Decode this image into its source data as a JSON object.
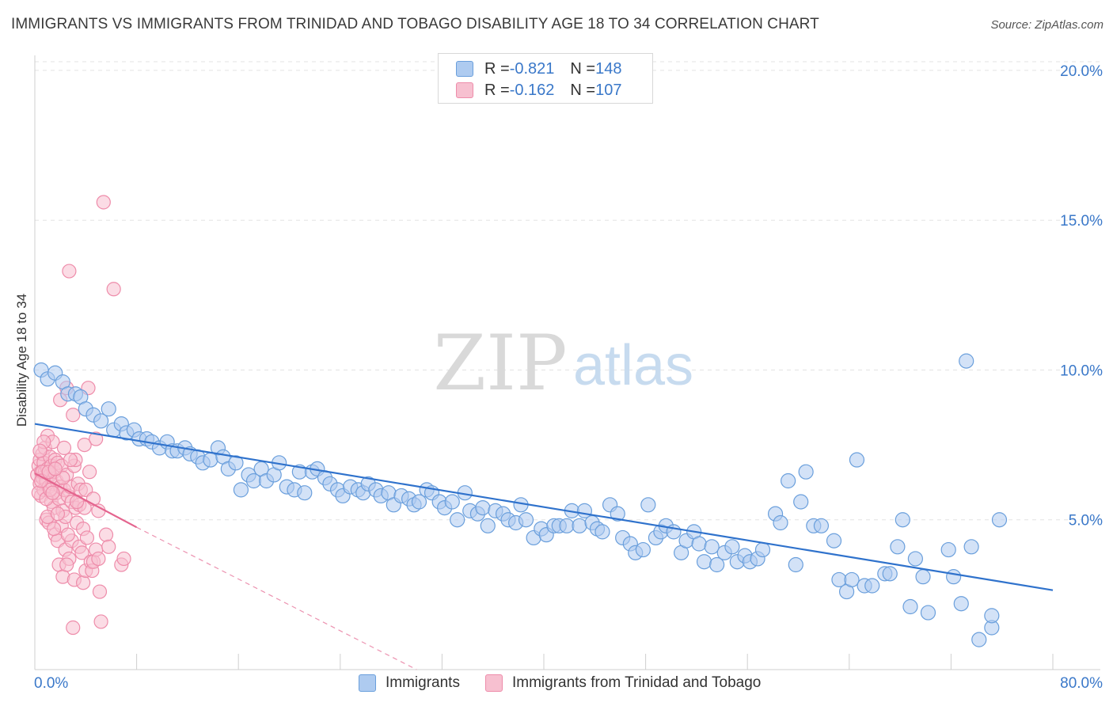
{
  "title": "IMMIGRANTS VS IMMIGRANTS FROM TRINIDAD AND TOBAGO DISABILITY AGE 18 TO 34 CORRELATION CHART",
  "source": "Source: ZipAtlas.com",
  "watermark": {
    "zip": "ZIP",
    "atlas": "atlas"
  },
  "legend_top": [
    {
      "r_label": "R = ",
      "r_value": "-0.821",
      "n_label": "N = ",
      "n_value": "148"
    },
    {
      "r_label": "R = ",
      "r_value": "-0.162",
      "n_label": "N = ",
      "n_value": "107"
    }
  ],
  "colors": {
    "blue_fill": "#aecbf0",
    "blue_stroke": "#6a9fdc",
    "blue_line": "#2f72cc",
    "pink_fill": "#f7c0d0",
    "pink_stroke": "#ee8caa",
    "pink_line": "#e4648e",
    "axis_text": "#3a78c9"
  },
  "chart_data": {
    "type": "scatter",
    "title": "IMMIGRANTS VS IMMIGRANTS FROM TRINIDAD AND TOBAGO DISABILITY AGE 18 TO 34 CORRELATION CHART",
    "xlabel": "",
    "ylabel": "Disability Age 18 to 34",
    "xlim": [
      0,
      80
    ],
    "ylim": [
      0,
      20.5
    ],
    "x_tick_labels": [
      "0.0%",
      "80.0%"
    ],
    "y_ticks": [
      5,
      10,
      15,
      20
    ],
    "y_tick_labels": [
      "5.0%",
      "10.0%",
      "15.0%",
      "20.0%"
    ],
    "grid": true,
    "legend_position": "bottom",
    "series": [
      {
        "name": "Immigrants",
        "r": -0.821,
        "n": 148,
        "trend": {
          "x": [
            0,
            80
          ],
          "y": [
            8.2,
            2.65
          ],
          "style": "solid"
        },
        "points": [
          [
            0.5,
            10.0
          ],
          [
            1.0,
            9.7
          ],
          [
            1.6,
            9.9
          ],
          [
            2.2,
            9.6
          ],
          [
            2.6,
            9.2
          ],
          [
            3.2,
            9.2
          ],
          [
            3.6,
            9.1
          ],
          [
            4.0,
            8.7
          ],
          [
            4.6,
            8.5
          ],
          [
            5.2,
            8.3
          ],
          [
            5.8,
            8.7
          ],
          [
            6.2,
            8.0
          ],
          [
            6.8,
            8.2
          ],
          [
            7.2,
            7.9
          ],
          [
            7.8,
            8.0
          ],
          [
            8.2,
            7.7
          ],
          [
            8.8,
            7.7
          ],
          [
            9.2,
            7.6
          ],
          [
            9.8,
            7.4
          ],
          [
            10.4,
            7.6
          ],
          [
            10.8,
            7.3
          ],
          [
            11.2,
            7.3
          ],
          [
            11.8,
            7.4
          ],
          [
            12.2,
            7.2
          ],
          [
            12.8,
            7.1
          ],
          [
            13.2,
            6.9
          ],
          [
            13.8,
            7.0
          ],
          [
            14.4,
            7.4
          ],
          [
            14.8,
            7.1
          ],
          [
            15.2,
            6.7
          ],
          [
            15.8,
            6.9
          ],
          [
            16.2,
            6.0
          ],
          [
            16.8,
            6.5
          ],
          [
            17.2,
            6.3
          ],
          [
            17.8,
            6.7
          ],
          [
            18.2,
            6.3
          ],
          [
            18.8,
            6.5
          ],
          [
            19.2,
            6.9
          ],
          [
            19.8,
            6.1
          ],
          [
            20.4,
            6.0
          ],
          [
            20.8,
            6.6
          ],
          [
            21.2,
            5.9
          ],
          [
            21.8,
            6.6
          ],
          [
            22.2,
            6.7
          ],
          [
            22.8,
            6.4
          ],
          [
            23.2,
            6.2
          ],
          [
            23.8,
            6.0
          ],
          [
            24.2,
            5.8
          ],
          [
            24.8,
            6.1
          ],
          [
            25.4,
            6.0
          ],
          [
            25.8,
            5.9
          ],
          [
            26.2,
            6.2
          ],
          [
            26.8,
            6.0
          ],
          [
            27.2,
            5.8
          ],
          [
            27.8,
            5.9
          ],
          [
            28.2,
            5.5
          ],
          [
            28.8,
            5.8
          ],
          [
            29.4,
            5.7
          ],
          [
            29.8,
            5.5
          ],
          [
            30.2,
            5.6
          ],
          [
            30.8,
            6.0
          ],
          [
            31.2,
            5.9
          ],
          [
            31.8,
            5.6
          ],
          [
            32.2,
            5.4
          ],
          [
            32.8,
            5.6
          ],
          [
            33.2,
            5.0
          ],
          [
            33.8,
            5.9
          ],
          [
            34.2,
            5.3
          ],
          [
            34.8,
            5.2
          ],
          [
            35.2,
            5.4
          ],
          [
            35.6,
            4.8
          ],
          [
            36.2,
            5.3
          ],
          [
            36.8,
            5.2
          ],
          [
            37.2,
            5.0
          ],
          [
            37.8,
            4.9
          ],
          [
            38.2,
            5.5
          ],
          [
            38.6,
            5.0
          ],
          [
            39.2,
            4.4
          ],
          [
            39.8,
            4.7
          ],
          [
            40.2,
            4.5
          ],
          [
            40.8,
            4.8
          ],
          [
            41.2,
            4.8
          ],
          [
            41.8,
            4.8
          ],
          [
            42.2,
            5.3
          ],
          [
            42.8,
            4.8
          ],
          [
            43.2,
            5.3
          ],
          [
            43.8,
            4.9
          ],
          [
            44.2,
            4.7
          ],
          [
            44.6,
            4.6
          ],
          [
            45.2,
            5.5
          ],
          [
            45.8,
            5.2
          ],
          [
            46.2,
            4.4
          ],
          [
            46.8,
            4.2
          ],
          [
            47.2,
            3.9
          ],
          [
            47.8,
            4.0
          ],
          [
            48.2,
            5.5
          ],
          [
            48.8,
            4.4
          ],
          [
            49.2,
            4.6
          ],
          [
            49.6,
            4.8
          ],
          [
            50.2,
            4.6
          ],
          [
            50.8,
            3.9
          ],
          [
            51.2,
            4.3
          ],
          [
            51.8,
            4.6
          ],
          [
            52.2,
            4.2
          ],
          [
            52.6,
            3.6
          ],
          [
            53.2,
            4.1
          ],
          [
            53.6,
            3.5
          ],
          [
            54.2,
            3.9
          ],
          [
            54.8,
            4.1
          ],
          [
            55.2,
            3.6
          ],
          [
            55.8,
            3.8
          ],
          [
            56.2,
            3.6
          ],
          [
            56.8,
            3.7
          ],
          [
            57.2,
            4.0
          ],
          [
            58.2,
            5.2
          ],
          [
            58.6,
            4.9
          ],
          [
            59.2,
            6.3
          ],
          [
            59.8,
            3.5
          ],
          [
            60.2,
            5.6
          ],
          [
            60.6,
            6.6
          ],
          [
            61.2,
            4.8
          ],
          [
            61.8,
            4.8
          ],
          [
            62.8,
            4.3
          ],
          [
            63.2,
            3.0
          ],
          [
            63.8,
            2.6
          ],
          [
            64.2,
            3.0
          ],
          [
            64.6,
            7.0
          ],
          [
            65.2,
            2.8
          ],
          [
            65.8,
            2.8
          ],
          [
            66.8,
            3.2
          ],
          [
            67.2,
            3.2
          ],
          [
            67.8,
            4.1
          ],
          [
            68.2,
            5.0
          ],
          [
            68.8,
            2.1
          ],
          [
            69.2,
            3.7
          ],
          [
            69.8,
            3.1
          ],
          [
            70.2,
            1.9
          ],
          [
            71.8,
            4.0
          ],
          [
            72.2,
            3.1
          ],
          [
            72.8,
            2.2
          ],
          [
            73.2,
            10.3
          ],
          [
            73.6,
            4.1
          ],
          [
            74.2,
            1.0
          ],
          [
            75.2,
            1.4
          ],
          [
            75.8,
            5.0
          ],
          [
            75.2,
            1.8
          ]
        ]
      },
      {
        "name": "Immigrants from Trinidad and Tobago",
        "r": -0.162,
        "n": 107,
        "trend_solid": {
          "x": [
            0,
            8
          ],
          "y": [
            6.55,
            4.75
          ]
        },
        "trend_dashed": {
          "x": [
            8,
            30
          ],
          "y": [
            4.75,
            0
          ]
        },
        "points": [
          [
            0.2,
            6.5
          ],
          [
            0.3,
            6.8
          ],
          [
            0.4,
            6.2
          ],
          [
            0.4,
            7.0
          ],
          [
            0.5,
            6.6
          ],
          [
            0.5,
            5.8
          ],
          [
            0.6,
            7.2
          ],
          [
            0.6,
            6.4
          ],
          [
            0.7,
            6.9
          ],
          [
            0.7,
            6.0
          ],
          [
            0.8,
            6.6
          ],
          [
            0.8,
            7.4
          ],
          [
            0.9,
            6.3
          ],
          [
            0.9,
            5.0
          ],
          [
            1.0,
            6.7
          ],
          [
            1.0,
            7.8
          ],
          [
            1.1,
            6.1
          ],
          [
            1.1,
            4.9
          ],
          [
            1.2,
            6.5
          ],
          [
            1.2,
            7.1
          ],
          [
            1.3,
            5.6
          ],
          [
            1.3,
            6.8
          ],
          [
            1.4,
            6.2
          ],
          [
            1.4,
            7.6
          ],
          [
            1.5,
            5.4
          ],
          [
            1.5,
            6.6
          ],
          [
            1.6,
            4.5
          ],
          [
            1.6,
            7.0
          ],
          [
            1.7,
            5.9
          ],
          [
            1.7,
            6.3
          ],
          [
            1.8,
            4.3
          ],
          [
            1.8,
            6.9
          ],
          [
            1.9,
            5.7
          ],
          [
            1.9,
            3.5
          ],
          [
            2.0,
            9.0
          ],
          [
            2.0,
            6.1
          ],
          [
            2.1,
            4.8
          ],
          [
            2.1,
            6.8
          ],
          [
            2.2,
            5.3
          ],
          [
            2.2,
            3.1
          ],
          [
            2.3,
            7.4
          ],
          [
            2.3,
            6.0
          ],
          [
            2.4,
            5.1
          ],
          [
            2.4,
            4.0
          ],
          [
            2.5,
            6.5
          ],
          [
            2.5,
            9.4
          ],
          [
            2.6,
            5.8
          ],
          [
            2.7,
            13.3
          ],
          [
            2.7,
            3.7
          ],
          [
            2.8,
            6.1
          ],
          [
            2.9,
            4.3
          ],
          [
            2.9,
            5.6
          ],
          [
            3.0,
            8.5
          ],
          [
            3.0,
            1.4
          ],
          [
            3.1,
            6.8
          ],
          [
            3.1,
            3.0
          ],
          [
            3.2,
            7.0
          ],
          [
            3.2,
            5.4
          ],
          [
            3.3,
            4.9
          ],
          [
            3.4,
            6.2
          ],
          [
            3.5,
            5.5
          ],
          [
            3.5,
            4.1
          ],
          [
            3.6,
            6.0
          ],
          [
            3.7,
            3.9
          ],
          [
            3.8,
            4.7
          ],
          [
            3.8,
            2.9
          ],
          [
            3.9,
            5.4
          ],
          [
            3.9,
            7.5
          ],
          [
            4.0,
            6.0
          ],
          [
            4.0,
            3.3
          ],
          [
            4.1,
            4.4
          ],
          [
            4.2,
            9.4
          ],
          [
            4.3,
            6.6
          ],
          [
            4.4,
            3.6
          ],
          [
            4.5,
            3.3
          ],
          [
            4.6,
            3.6
          ],
          [
            4.6,
            5.7
          ],
          [
            4.8,
            4.0
          ],
          [
            4.8,
            7.7
          ],
          [
            5.0,
            3.7
          ],
          [
            5.0,
            5.3
          ],
          [
            5.1,
            2.6
          ],
          [
            5.2,
            1.6
          ],
          [
            5.4,
            15.6
          ],
          [
            5.6,
            4.5
          ],
          [
            5.8,
            4.1
          ],
          [
            6.2,
            12.7
          ],
          [
            6.8,
            3.5
          ],
          [
            7.0,
            3.7
          ],
          [
            1.0,
            5.1
          ],
          [
            1.5,
            4.7
          ],
          [
            2.5,
            3.5
          ],
          [
            0.3,
            5.9
          ],
          [
            0.6,
            6.6
          ],
          [
            0.9,
            5.7
          ],
          [
            1.2,
            6.0
          ],
          [
            1.8,
            5.2
          ],
          [
            2.2,
            6.4
          ],
          [
            2.6,
            4.5
          ],
          [
            3.3,
            5.6
          ],
          [
            0.5,
            6.3
          ],
          [
            1.4,
            5.9
          ],
          [
            0.7,
            7.6
          ],
          [
            1.1,
            6.6
          ],
          [
            0.4,
            7.3
          ],
          [
            1.6,
            6.7
          ],
          [
            2.8,
            7.0
          ]
        ]
      }
    ]
  }
}
